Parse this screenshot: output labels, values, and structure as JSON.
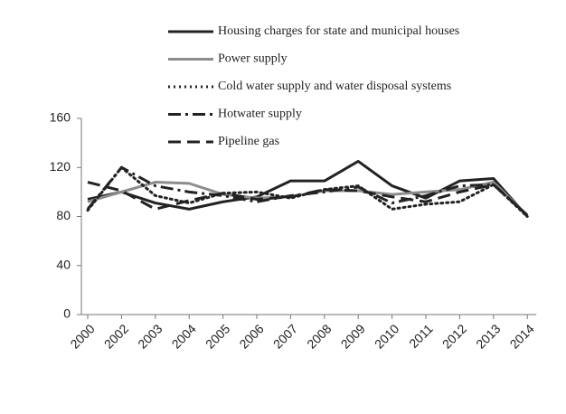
{
  "chart_data": {
    "type": "line",
    "categories": [
      "2000",
      "2002",
      "2003",
      "2004",
      "2005",
      "2006",
      "2007",
      "2008",
      "2009",
      "2010",
      "2011",
      "2012",
      "2013",
      "2014"
    ],
    "series": [
      {
        "name": "Housing charges for state and municipal houses",
        "color": "#222222",
        "style": "solid",
        "values": [
          94,
          100,
          91,
          86,
          92,
          96,
          109,
          109,
          125,
          105,
          95,
          109,
          111,
          80
        ]
      },
      {
        "name": "Power supply",
        "color": "#8c8c8c",
        "style": "solid",
        "values": [
          92,
          100,
          108,
          107,
          98,
          95,
          96,
          101,
          101,
          98,
          100,
          102,
          108,
          81
        ]
      },
      {
        "name": "Cold water supply and water disposal systems",
        "color": "#222222",
        "style": "dotted",
        "values": [
          85,
          120,
          97,
          91,
          99,
          100,
          95,
          102,
          105,
          86,
          90,
          92,
          106,
          80
        ]
      },
      {
        "name": "Hotwater supply",
        "color": "#222222",
        "style": "dashdot",
        "values": [
          86,
          120,
          105,
          100,
          97,
          92,
          97,
          100,
          104,
          91,
          97,
          105,
          106,
          81
        ]
      },
      {
        "name": "Pipeline gas",
        "color": "#222222",
        "style": "dashed",
        "values": [
          108,
          101,
          86,
          93,
          99,
          94,
          96,
          102,
          101,
          96,
          92,
          100,
          106,
          81
        ]
      }
    ],
    "ylim": [
      0,
      160
    ],
    "yticks": [
      0,
      40,
      80,
      120,
      160
    ],
    "grid": false,
    "legend": "top"
  }
}
